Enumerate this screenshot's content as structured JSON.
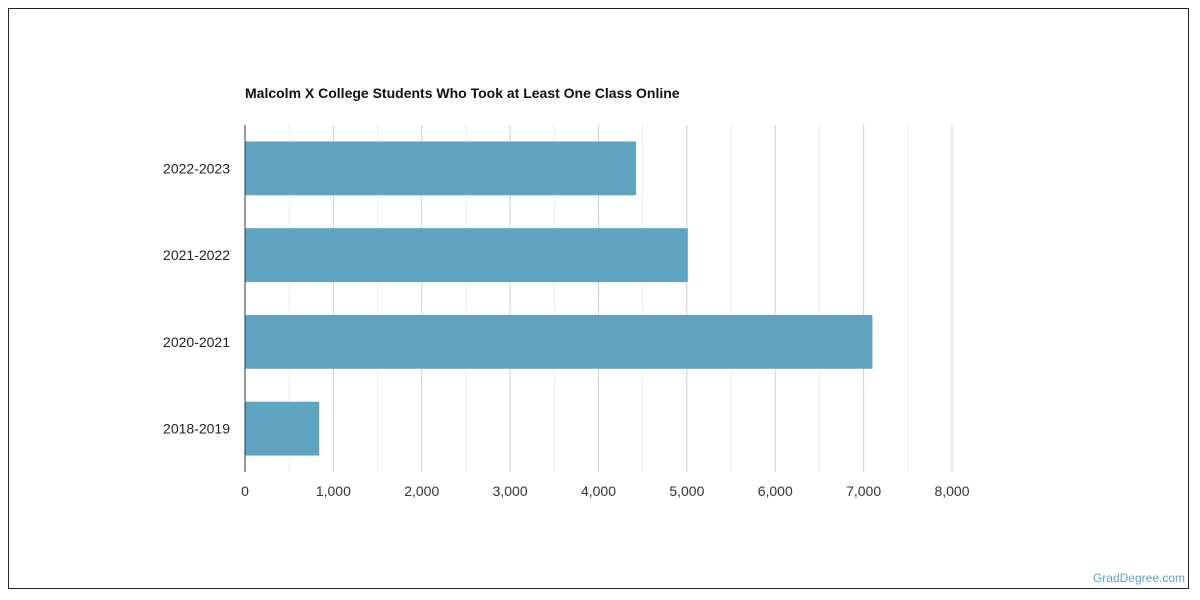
{
  "chart_data": {
    "type": "bar",
    "orientation": "horizontal",
    "title": "Malcolm X College Students Who Took at Least One Class Online",
    "categories": [
      "2022-2023",
      "2021-2022",
      "2020-2021",
      "2018-2019"
    ],
    "values": [
      4425,
      5010,
      7100,
      840
    ],
    "xlim": [
      0,
      8000
    ],
    "xticks": [
      0,
      1000,
      2000,
      3000,
      4000,
      5000,
      6000,
      7000,
      8000
    ],
    "xtick_labels": [
      "0",
      "1,000",
      "2,000",
      "3,000",
      "4,000",
      "5,000",
      "6,000",
      "7,000",
      "8,000"
    ],
    "grid": true,
    "bar_color": "#5ea3bf"
  },
  "watermark": "GradDegree.com"
}
